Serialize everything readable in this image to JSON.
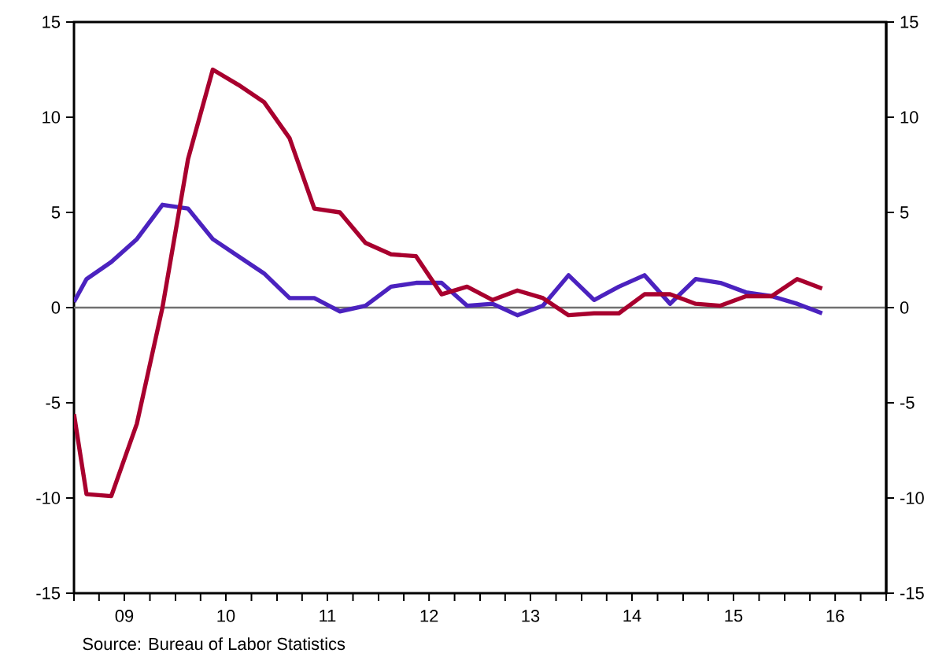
{
  "chart_data": {
    "type": "line",
    "x": [
      "2009-01-01",
      "2009-02-15",
      "2009-05-15",
      "2009-08-15",
      "2009-11-15",
      "2010-02-15",
      "2010-05-15",
      "2010-08-15",
      "2010-11-15",
      "2011-02-15",
      "2011-05-15",
      "2011-08-15",
      "2011-11-15",
      "2012-02-15",
      "2012-05-15",
      "2012-08-15",
      "2012-11-15",
      "2013-02-15",
      "2013-05-15",
      "2013-08-15",
      "2013-11-15",
      "2014-02-15",
      "2014-05-15",
      "2014-08-15",
      "2014-11-15",
      "2015-02-15",
      "2015-05-15",
      "2015-08-15",
      "2015-11-15",
      "2016-02-15",
      "2016-05-15"
    ],
    "series": [
      {
        "color": "#4b22bf",
        "values": [
          0.3,
          1.5,
          2.4,
          3.6,
          5.4,
          5.2,
          3.6,
          2.7,
          1.8,
          0.5,
          0.5,
          -0.2,
          0.1,
          1.1,
          1.3,
          1.3,
          0.1,
          0.2,
          -0.4,
          0.1,
          1.7,
          0.4,
          1.1,
          1.7,
          0.2,
          1.5,
          1.3,
          0.8,
          0.6,
          0.2,
          -0.3
        ]
      },
      {
        "color": "#a8002e",
        "values": [
          -5.6,
          -9.8,
          -9.9,
          -6.1,
          0.0,
          7.8,
          12.5,
          11.7,
          10.8,
          8.9,
          5.2,
          5.0,
          3.4,
          2.8,
          2.7,
          0.7,
          1.1,
          0.4,
          0.9,
          0.5,
          -0.4,
          -0.3,
          -0.3,
          0.7,
          0.7,
          0.2,
          0.1,
          0.6,
          0.6,
          1.5,
          1.0
        ]
      }
    ],
    "xlim": [
      "2009-01-01",
      "2017-01-01"
    ],
    "xticks": [
      {
        "value": "2009-01-01",
        "label": null
      },
      {
        "value": "2009-04-01",
        "label": null
      },
      {
        "value": "2009-07-01",
        "label": "09"
      },
      {
        "value": "2009-10-01",
        "label": null
      },
      {
        "value": "2010-01-01",
        "label": null
      },
      {
        "value": "2010-04-01",
        "label": null
      },
      {
        "value": "2010-07-01",
        "label": "10"
      },
      {
        "value": "2010-10-01",
        "label": null
      },
      {
        "value": "2011-01-01",
        "label": null
      },
      {
        "value": "2011-04-01",
        "label": null
      },
      {
        "value": "2011-07-01",
        "label": "11"
      },
      {
        "value": "2011-10-01",
        "label": null
      },
      {
        "value": "2012-01-01",
        "label": null
      },
      {
        "value": "2012-04-01",
        "label": null
      },
      {
        "value": "2012-07-01",
        "label": "12"
      },
      {
        "value": "2012-10-01",
        "label": null
      },
      {
        "value": "2013-01-01",
        "label": null
      },
      {
        "value": "2013-04-01",
        "label": null
      },
      {
        "value": "2013-07-01",
        "label": "13"
      },
      {
        "value": "2013-10-01",
        "label": null
      },
      {
        "value": "2014-01-01",
        "label": null
      },
      {
        "value": "2014-04-01",
        "label": null
      },
      {
        "value": "2014-07-01",
        "label": "14"
      },
      {
        "value": "2014-10-01",
        "label": null
      },
      {
        "value": "2015-01-01",
        "label": null
      },
      {
        "value": "2015-04-01",
        "label": null
      },
      {
        "value": "2015-07-01",
        "label": "15"
      },
      {
        "value": "2015-10-01",
        "label": null
      },
      {
        "value": "2016-01-01",
        "label": null
      },
      {
        "value": "2016-04-01",
        "label": null
      },
      {
        "value": "2016-07-01",
        "label": "16"
      },
      {
        "value": "2016-10-01",
        "label": null
      },
      {
        "value": "2017-01-01",
        "label": null
      }
    ],
    "ylim": [
      -15,
      15
    ],
    "yticks": [
      -15,
      -10,
      -5,
      0,
      5,
      10,
      15
    ],
    "y2lim": [
      -15,
      15
    ],
    "y2ticks": [
      -15,
      -10,
      -5,
      0,
      5,
      10,
      15
    ],
    "ref_lines": [
      {
        "axis": "y",
        "value": 0,
        "color": "#707070"
      }
    ],
    "grid": false,
    "line_style": "solid",
    "marker": "none",
    "annotations": [
      "Source: Bureau of Labor Statistics"
    ]
  }
}
